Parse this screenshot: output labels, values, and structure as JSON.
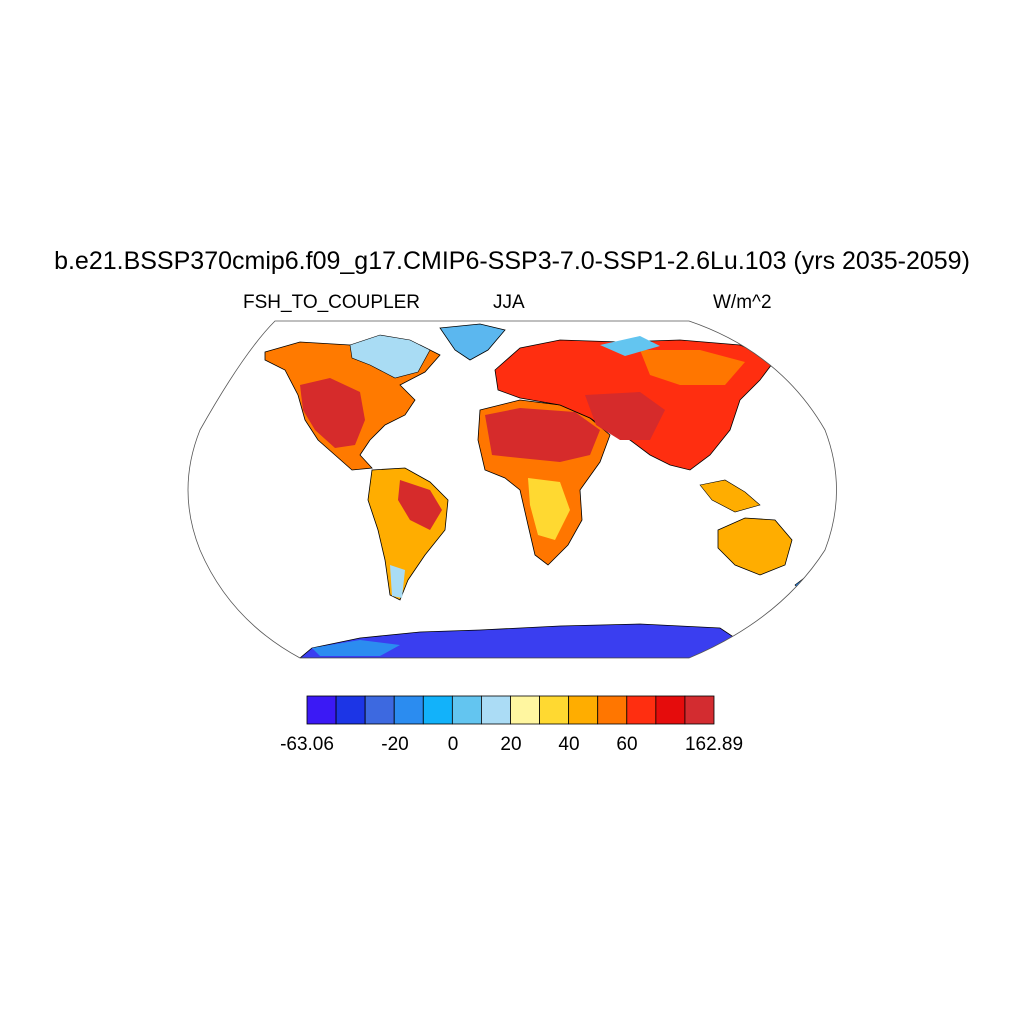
{
  "map": {
    "title": "b.e21.BSSP370cmip6.f09_g17.CMIP6-SSP3-7.0-SSP1-2.6Lu.103 (yrs 2035-2059)",
    "variable": "FSH_TO_COUPLER",
    "season": "JJA",
    "units": "W/m^2",
    "projection": "robinson",
    "colors": {
      "hot": "#d62b2b",
      "warm": "#ff7a00",
      "mild": "#ffd43a",
      "cool": "#a9dcf4",
      "cold": "#3a3ef0",
      "outline": "#000000",
      "frame": "#555555"
    }
  },
  "colorbar": {
    "min_label": "-63.06",
    "max_label": "162.89",
    "ticks": [
      "-20",
      "0",
      "20",
      "40",
      "60"
    ],
    "colors": [
      "#3b19f5",
      "#1c35e6",
      "#3d69e0",
      "#2b8cf0",
      "#12b2fa",
      "#63c5f0",
      "#abdcf5",
      "#fff6a0",
      "#ffd931",
      "#ffad00",
      "#ff7600",
      "#ff2e10",
      "#e50c0c",
      "#d32c30"
    ]
  }
}
